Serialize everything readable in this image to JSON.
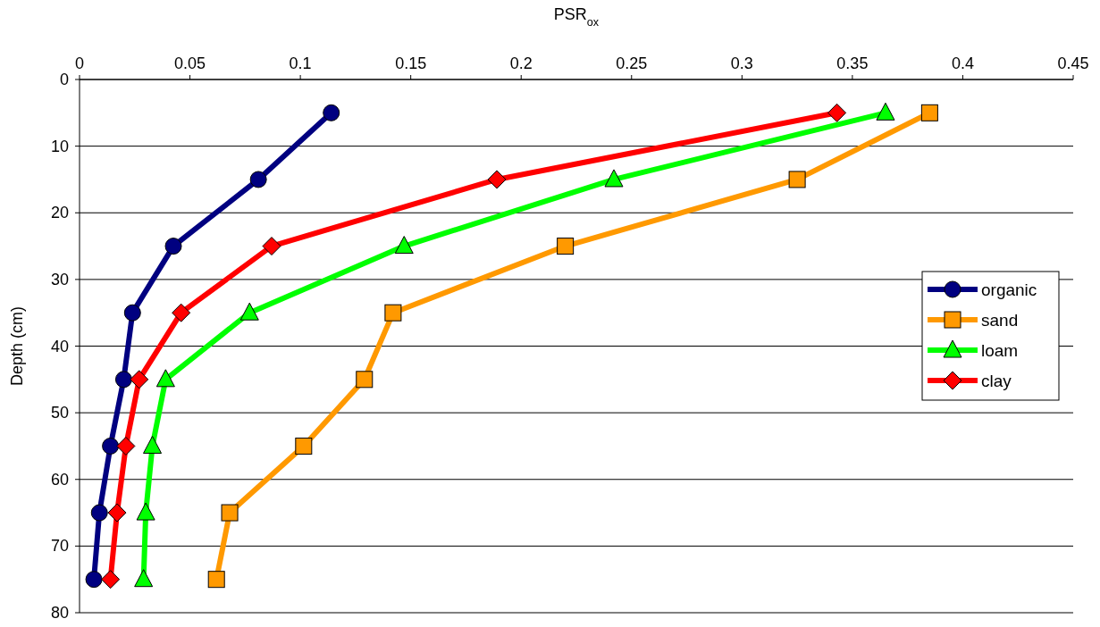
{
  "chart_data": {
    "type": "line",
    "xlabel": "PSR$_{ox}$",
    "ylabel": "Depth (cm)",
    "xlim": [
      0,
      0.45
    ],
    "xticks": [
      0,
      0.05,
      0.1,
      0.15,
      0.2,
      0.25,
      0.3,
      0.35,
      0.4,
      0.45
    ],
    "ylim": [
      80,
      0
    ],
    "yticks": [
      0,
      10,
      20,
      30,
      40,
      50,
      60,
      70,
      80
    ],
    "grid": "y",
    "legend": "right",
    "series": [
      {
        "name": "organic",
        "color": "#000080",
        "marker": "circle",
        "x": [
          0.114,
          0.081,
          0.0425,
          0.024,
          0.02,
          0.014,
          0.009,
          0.0065
        ],
        "values": [
          5,
          15,
          25,
          35,
          45,
          55,
          65,
          75
        ]
      },
      {
        "name": "sand",
        "color": "#ff9900",
        "marker": "square",
        "x": [
          0.385,
          0.325,
          0.22,
          0.142,
          0.129,
          0.1015,
          0.068,
          0.062
        ],
        "values": [
          5,
          15,
          25,
          35,
          45,
          55,
          65,
          75
        ]
      },
      {
        "name": "loam",
        "color": "#00ff00",
        "marker": "triangle",
        "x": [
          0.365,
          0.242,
          0.147,
          0.077,
          0.039,
          0.033,
          0.03,
          0.029
        ],
        "values": [
          5,
          15,
          25,
          35,
          45,
          55,
          65,
          75
        ]
      },
      {
        "name": "clay",
        "color": "#ff0000",
        "marker": "diamond",
        "x": [
          0.343,
          0.189,
          0.087,
          0.046,
          0.027,
          0.021,
          0.017,
          0.014
        ],
        "values": [
          5,
          15,
          25,
          35,
          45,
          55,
          65,
          75
        ]
      }
    ]
  }
}
